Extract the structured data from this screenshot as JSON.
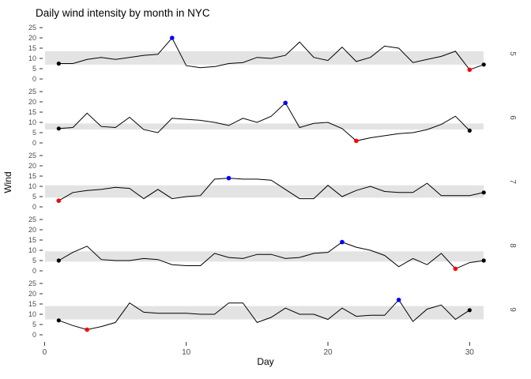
{
  "title": "Daily wind intensity by month in NYC",
  "chart_data": {
    "type": "line",
    "title": "Daily wind intensity by month in NYC",
    "xlabel": "Day",
    "ylabel": "Wind",
    "x_ticks": [
      0,
      10,
      20,
      30
    ],
    "y_ticks": [
      0,
      5,
      10,
      15,
      20,
      25
    ],
    "ylim": [
      0,
      25
    ],
    "xlim": [
      0,
      31
    ],
    "grid": "off",
    "legend": "none",
    "facet_side": "right",
    "colors": {
      "line": "#000000",
      "endpoint": "#000000",
      "max_point": "#0000FF",
      "min_point": "#FF0000",
      "band": "#E3E3E3",
      "axis_text": "#4D4D4D",
      "title_text": "#000000"
    },
    "facets": [
      {
        "label": "5",
        "month": 5,
        "days": 31,
        "band": [
          7,
          13.5
        ],
        "max_day": 9,
        "min_day": 30,
        "values": [
          7.5,
          7.5,
          9.5,
          10.5,
          9.5,
          10.5,
          11.5,
          12,
          20,
          6.5,
          5.5,
          6,
          7.5,
          8,
          10.5,
          10,
          11.5,
          18,
          10.5,
          9,
          15.5,
          8.5,
          10.5,
          16,
          15,
          8,
          9.5,
          11,
          13.5,
          4.5,
          7
        ]
      },
      {
        "label": "6",
        "month": 6,
        "days": 30,
        "band": [
          6.5,
          9.5
        ],
        "max_day": 17,
        "min_day": 22,
        "values": [
          7,
          7.5,
          14.5,
          8,
          7.5,
          12.5,
          6.5,
          5,
          12,
          11.5,
          11,
          10,
          8.5,
          12,
          10,
          13,
          19.5,
          7.5,
          9.5,
          10,
          7,
          1,
          2.5,
          3.5,
          4.5,
          5,
          6.5,
          9,
          13,
          6
        ]
      },
      {
        "label": "7",
        "month": 7,
        "days": 31,
        "band": [
          4.5,
          10.5
        ],
        "max_day": 13,
        "min_day": 1,
        "values": [
          3,
          7,
          8,
          8.5,
          9.5,
          9,
          4,
          8.5,
          4,
          5,
          5.5,
          13.5,
          14,
          13.5,
          13.5,
          13,
          8.5,
          4,
          4,
          10.5,
          5,
          8,
          10,
          7.5,
          7,
          7,
          11.5,
          5.5,
          5.5,
          5.5,
          7
        ]
      },
      {
        "label": "8",
        "month": 8,
        "days": 31,
        "band": [
          4.5,
          9.5
        ],
        "max_day": 21,
        "min_day": 29,
        "values": [
          5,
          9,
          12,
          5.5,
          5,
          5,
          6,
          5.5,
          3,
          2.5,
          2.5,
          8.5,
          6.5,
          6,
          8,
          8,
          6,
          6.5,
          8.5,
          9,
          14,
          11.5,
          10,
          7.5,
          2,
          6,
          3,
          8.5,
          1,
          4,
          5
        ]
      },
      {
        "label": "9",
        "month": 9,
        "days": 30,
        "band": [
          7.5,
          14
        ],
        "max_day": 25,
        "min_day": 3,
        "values": [
          7,
          4.5,
          2.5,
          4,
          6,
          15.5,
          11,
          10.5,
          10.5,
          10.5,
          10,
          10,
          15.5,
          15.5,
          6,
          8.5,
          13,
          10,
          10,
          7.5,
          13,
          9,
          9.5,
          9.5,
          17,
          6.5,
          12.5,
          14.5,
          7.5,
          12
        ]
      }
    ]
  }
}
